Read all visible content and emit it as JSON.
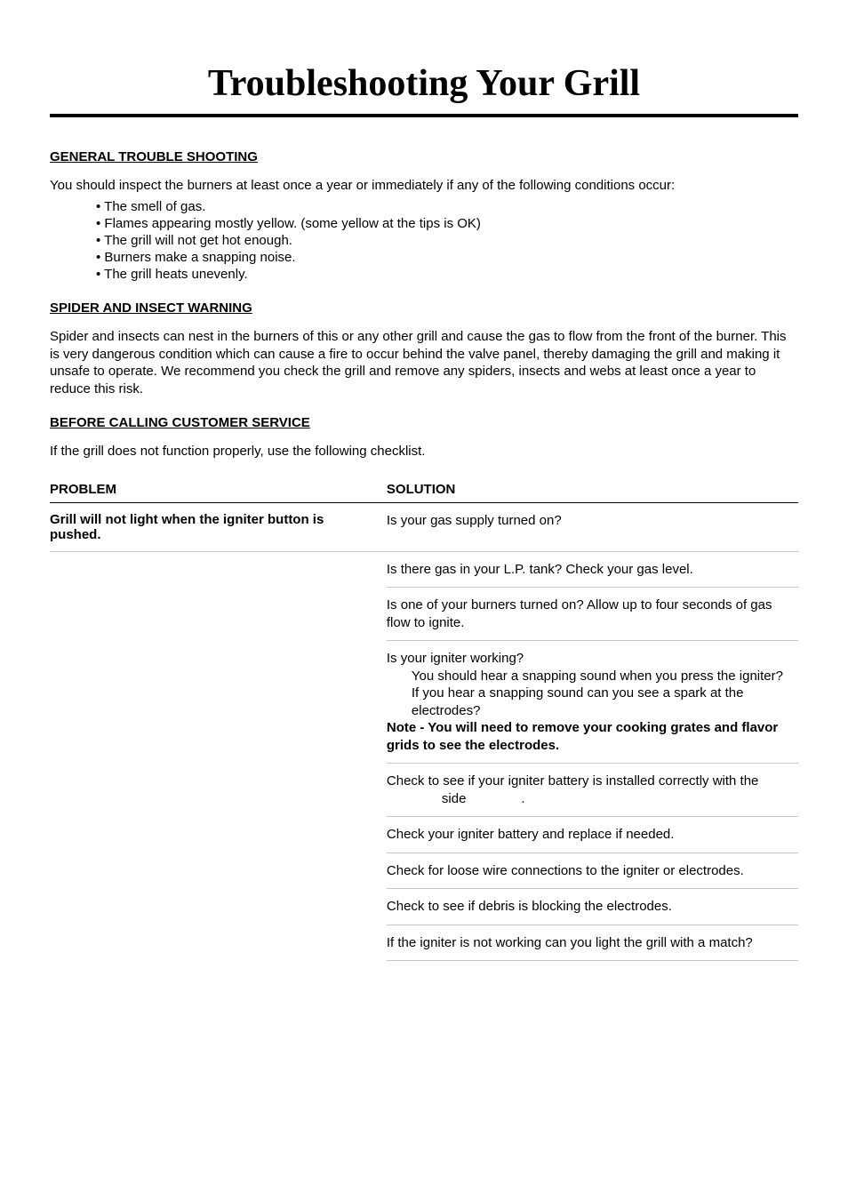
{
  "title": "Troubleshooting Your Grill",
  "general": {
    "heading": "GENERAL TROUBLE SHOOTING",
    "intro": "You should inspect the burners at least once a year or immediately if any of the following conditions occur:",
    "bullets": [
      "The smell of gas.",
      "Flames appearing mostly yellow. (some yellow at the tips is OK)",
      "The grill will not get hot enough.",
      "Burners make a snapping noise.",
      "The grill heats unevenly."
    ]
  },
  "spider": {
    "heading": "SPIDER AND INSECT WARNING",
    "body": "Spider and insects can nest in the burners of this or any other grill and cause the gas to flow from the front of the burner. This is very dangerous condition which can cause a fire to occur behind the valve panel, thereby damaging the grill and making it unsafe to operate. We recommend you check the grill and remove any spiders, insects and webs at least once a year to reduce this risk."
  },
  "before": {
    "heading": "BEFORE CALLING CUSTOMER SERVICE",
    "body": "If the grill does not function properly, use the following checklist."
  },
  "table": {
    "header_problem": "PROBLEM",
    "header_solution": "SOLUTION",
    "problem1": "Grill will not light when the igniter button is pushed.",
    "solutions": {
      "s1": "Is your gas supply turned on?",
      "s2": "Is there gas in your L.P. tank? Check your gas level.",
      "s3": "Is one of your burners turned on? Allow up to four seconds of gas flow to ignite.",
      "s4_line1": "Is your igniter working?",
      "s4_sub1": "You should hear a snapping sound when you press the igniter?",
      "s4_sub2": "If you hear a snapping sound can you see a spark at the electrodes?",
      "s4_note": "Note - You will need to remove your cooking grates and flavor grids to see the electrodes.",
      "s5_a": "Check to see if your igniter battery is installed correctly with the",
      "s5_b": "side",
      "s5_c": ".",
      "s6": "Check your igniter battery and replace if needed.",
      "s7": "Check for loose wire connections to the igniter or electrodes.",
      "s8": "Check to see if debris is blocking the electrodes.",
      "s9": "If the igniter is not working can you light the grill with a match?"
    }
  }
}
